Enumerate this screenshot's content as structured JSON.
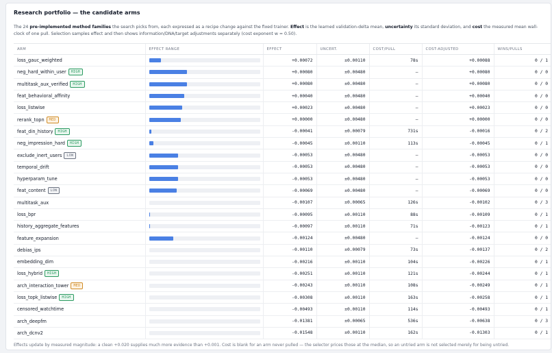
{
  "panel": {
    "title": "Research portfolio — the candidate arms",
    "intro": {
      "pre": "The 24 ",
      "families": "pre-implemented method families",
      "mid1": " the search picks from, each expressed as a recipe change against the fixed trainer. ",
      "effect_word": "Effect",
      "mid2": " is the learned validation-delta mean, ",
      "uncertainty_word": "uncertainty",
      "mid3": " its standard deviation, and ",
      "cost_word": "cost",
      "post": " the measured mean wall-clock of one pull. Selection samples effect and then shows information/DNA/target adjustments separately (cost exponent w = 0.50)."
    },
    "footnote": "Effects update by measured magnitude: a clean +0.020 supplies much more evidence than +0.001. Cost is blank for an arm never pulled — the selector prices those at the median, so an untried arm is not selected merely for being untried."
  },
  "columns": {
    "arm": "ARM",
    "range": "EFFECT RANGE",
    "effect": "EFFECT",
    "uncert": "UNCERT.",
    "cost": "COST/PULL",
    "adjusted": "COST-ADJUSTED",
    "wins": "WINS/PULLS"
  },
  "colors": {
    "accent_bar": "#4a80e4",
    "bar_track": "#eef0f4",
    "badge_high": "#2a9a60",
    "badge_med": "#d08a23",
    "badge_low": "#6b7280"
  },
  "rows": [
    {
      "arm": "loss_gauc_weighted",
      "badge": "",
      "effect": "+0.00072",
      "uncert": "±0.00110",
      "cost": "78s",
      "adjusted": "+0.00088",
      "wins": "0 / 1",
      "range_fill": 0.11
    },
    {
      "arm": "neg_hard_within_user",
      "badge": "HIGH",
      "effect": "+0.00080",
      "uncert": "±0.00480",
      "cost": "–",
      "adjusted": "+0.00080",
      "wins": "0 / 0",
      "range_fill": 0.34
    },
    {
      "arm": "multitask_aux_verified",
      "badge": "HIGH",
      "effect": "+0.00080",
      "uncert": "±0.00480",
      "cost": "–",
      "adjusted": "+0.00080",
      "wins": "0 / 0",
      "range_fill": 0.34
    },
    {
      "arm": "feat_behavioral_affinity",
      "badge": "",
      "effect": "+0.00040",
      "uncert": "±0.00480",
      "cost": "–",
      "adjusted": "+0.00040",
      "wins": "0 / 0",
      "range_fill": 0.32
    },
    {
      "arm": "loss_listwise",
      "badge": "",
      "effect": "+0.00023",
      "uncert": "±0.00480",
      "cost": "–",
      "adjusted": "+0.00023",
      "wins": "0 / 0",
      "range_fill": 0.3
    },
    {
      "arm": "rerank_topn",
      "badge": "MED",
      "effect": "+0.00000",
      "uncert": "±0.00480",
      "cost": "–",
      "adjusted": "+0.00000",
      "wins": "0 / 0",
      "range_fill": 0.29
    },
    {
      "arm": "feat_din_history",
      "badge": "HIGH",
      "effect": "-0.00041",
      "uncert": "±0.00079",
      "cost": "731s",
      "adjusted": "-0.00016",
      "wins": "0 / 2",
      "range_fill": 0.02
    },
    {
      "arm": "neg_impression_hard",
      "badge": "HIGH",
      "effect": "-0.00045",
      "uncert": "±0.00110",
      "cost": "113s",
      "adjusted": "-0.00045",
      "wins": "0 / 1",
      "range_fill": 0.04
    },
    {
      "arm": "exclude_inert_users",
      "badge": "LOW",
      "effect": "-0.00053",
      "uncert": "±0.00480",
      "cost": "–",
      "adjusted": "-0.00053",
      "wins": "0 / 0",
      "range_fill": 0.26
    },
    {
      "arm": "temporal_drift",
      "badge": "",
      "effect": "-0.00053",
      "uncert": "±0.00480",
      "cost": "–",
      "adjusted": "-0.00053",
      "wins": "0 / 0",
      "range_fill": 0.26
    },
    {
      "arm": "hyperparam_tune",
      "badge": "",
      "effect": "-0.00053",
      "uncert": "±0.00480",
      "cost": "–",
      "adjusted": "-0.00053",
      "wins": "0 / 0",
      "range_fill": 0.26
    },
    {
      "arm": "feat_content",
      "badge": "LOW",
      "effect": "-0.00069",
      "uncert": "±0.00480",
      "cost": "–",
      "adjusted": "-0.00069",
      "wins": "0 / 0",
      "range_fill": 0.25
    },
    {
      "arm": "multitask_aux",
      "badge": "",
      "effect": "-0.00107",
      "uncert": "±0.00065",
      "cost": "126s",
      "adjusted": "-0.00102",
      "wins": "0 / 3",
      "range_fill": 0.0
    },
    {
      "arm": "loss_bpr",
      "badge": "",
      "effect": "-0.00095",
      "uncert": "±0.00110",
      "cost": "88s",
      "adjusted": "-0.00109",
      "wins": "0 / 1",
      "range_fill": 0.01
    },
    {
      "arm": "history_aggregate_features",
      "badge": "",
      "effect": "-0.00097",
      "uncert": "±0.00110",
      "cost": "71s",
      "adjusted": "-0.00123",
      "wins": "0 / 1",
      "range_fill": 0.01
    },
    {
      "arm": "feature_expansion",
      "badge": "",
      "effect": "-0.00124",
      "uncert": "±0.00480",
      "cost": "–",
      "adjusted": "-0.00124",
      "wins": "0 / 0",
      "range_fill": 0.22
    },
    {
      "arm": "debias_ips",
      "badge": "",
      "effect": "-0.00110",
      "uncert": "±0.00079",
      "cost": "73s",
      "adjusted": "-0.00137",
      "wins": "0 / 2",
      "range_fill": 0.0
    },
    {
      "arm": "embedding_dim",
      "badge": "",
      "effect": "-0.00216",
      "uncert": "±0.00110",
      "cost": "104s",
      "adjusted": "-0.00226",
      "wins": "0 / 1",
      "range_fill": 0.0
    },
    {
      "arm": "loss_hybrid",
      "badge": "HIGH",
      "effect": "-0.00251",
      "uncert": "±0.00110",
      "cost": "121s",
      "adjusted": "-0.00244",
      "wins": "0 / 1",
      "range_fill": 0.0
    },
    {
      "arm": "arch_interaction_tower",
      "badge": "MED",
      "effect": "-0.00243",
      "uncert": "±0.00110",
      "cost": "108s",
      "adjusted": "-0.00249",
      "wins": "0 / 1",
      "range_fill": 0.0
    },
    {
      "arm": "loss_topk_listwise",
      "badge": "HIGH",
      "effect": "-0.00308",
      "uncert": "±0.00110",
      "cost": "163s",
      "adjusted": "-0.00258",
      "wins": "0 / 1",
      "range_fill": 0.0
    },
    {
      "arm": "censored_watchtime",
      "badge": "",
      "effect": "-0.00493",
      "uncert": "±0.00110",
      "cost": "114s",
      "adjusted": "-0.00493",
      "wins": "0 / 1",
      "range_fill": 0.0
    },
    {
      "arm": "arch_deepfm",
      "badge": "",
      "effect": "-0.01381",
      "uncert": "±0.00065",
      "cost": "536s",
      "adjusted": "-0.00638",
      "wins": "0 / 3",
      "range_fill": 0.0
    },
    {
      "arm": "arch_dcnv2",
      "badge": "",
      "effect": "-0.01548",
      "uncert": "±0.00110",
      "cost": "162s",
      "adjusted": "-0.01303",
      "wins": "0 / 1",
      "range_fill": 0.0
    }
  ]
}
